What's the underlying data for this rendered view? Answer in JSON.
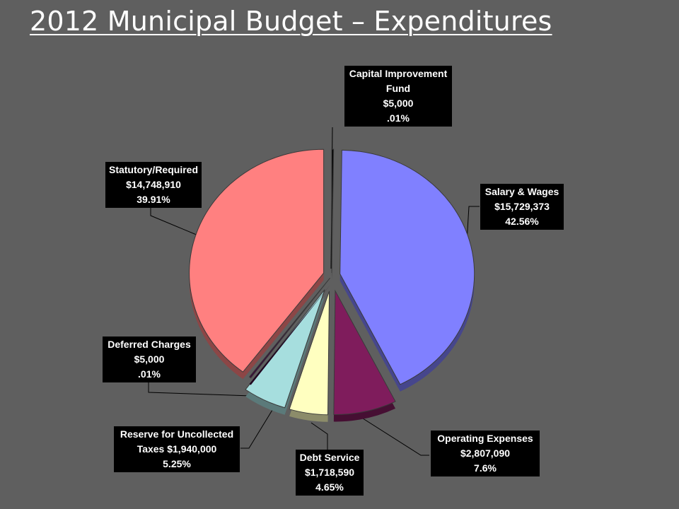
{
  "slide": {
    "title": "2012 Municipal Budget – Expenditures"
  },
  "chart_data": {
    "type": "pie",
    "title": "2012 Municipal Budget – Expenditures",
    "exploded": true,
    "three_d": true,
    "slices": [
      {
        "name": "Capital Improvement Fund",
        "value": 5000,
        "percent": 0.01,
        "amount_label": "$5,000",
        "percent_label": ".01%",
        "color": "#000000"
      },
      {
        "name": "Salary & Wages",
        "value": 15729373,
        "percent": 42.56,
        "amount_label": "$15,729,373",
        "percent_label": "42.56%",
        "color": "#8080ff"
      },
      {
        "name": "Operating Expenses",
        "value": 2807090,
        "percent": 7.6,
        "amount_label": "$2,807,090",
        "percent_label": "7.6%",
        "color": "#7f1c5c"
      },
      {
        "name": "Debt Service",
        "value": 1718590,
        "percent": 4.65,
        "amount_label": "$1,718,590",
        "percent_label": "4.65%",
        "color": "#ffffc0"
      },
      {
        "name": "Reserve for Uncollected Taxes",
        "value": 1940000,
        "percent": 5.25,
        "amount_label": "$1,940,000",
        "percent_label": "5.25%",
        "color": "#a6dede"
      },
      {
        "name": "Deferred Charges",
        "value": 5000,
        "percent": 0.01,
        "amount_label": "$5,000",
        "percent_label": ".01%",
        "color": "#3a0a3a"
      },
      {
        "name": "Statutory/Required",
        "value": 14748910,
        "percent": 39.91,
        "amount_label": "$14,748,910",
        "percent_label": "39.91%",
        "color": "#ff8080"
      }
    ]
  },
  "labels": {
    "capital": {
      "line1": "Capital Improvement",
      "line2": "Fund",
      "line3": "$5,000",
      "line4": ".01%"
    },
    "salary": {
      "line1": "Salary & Wages",
      "line2": "$15,729,373",
      "line3": "42.56%"
    },
    "operating": {
      "line1": "Operating Expenses",
      "line2": "$2,807,090",
      "line3": "7.6%"
    },
    "debt": {
      "line1": "Debt Service",
      "line2": "$1,718,590",
      "line3": "4.65%"
    },
    "reserve": {
      "line1": "Reserve for Uncollected",
      "line2": "Taxes $1,940,000",
      "line3": "5.25%"
    },
    "deferred": {
      "line1": "Deferred Charges",
      "line2": "$5,000",
      "line3": ".01%"
    },
    "statutory": {
      "line1": "Statutory/Required",
      "line2": "$14,748,910",
      "line3": "39.91%"
    }
  }
}
